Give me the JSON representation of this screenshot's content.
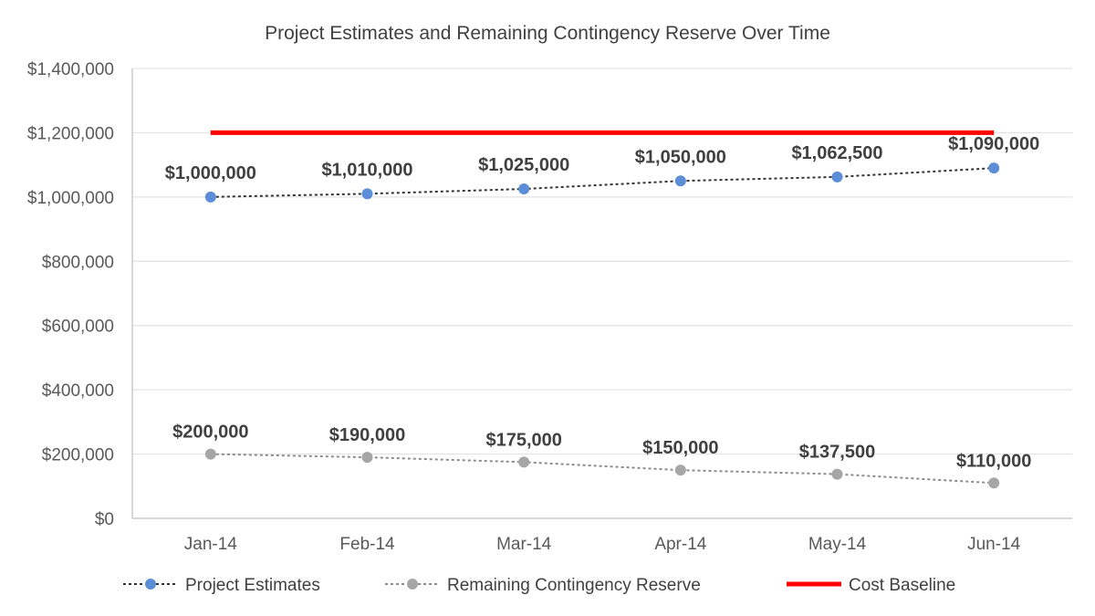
{
  "chart_data": {
    "type": "line",
    "title": "Project Estimates and Remaining Contingency Reserve Over Time",
    "categories": [
      "Jan-14",
      "Feb-14",
      "Mar-14",
      "Apr-14",
      "May-14",
      "Jun-14"
    ],
    "ylim": [
      0,
      1400000
    ],
    "yticks": [
      0,
      200000,
      400000,
      600000,
      800000,
      1000000,
      1200000,
      1400000
    ],
    "ytick_labels": [
      "$0",
      "$200,000",
      "$400,000",
      "$600,000",
      "$800,000",
      "$1,000,000",
      "$1,200,000",
      "$1,400,000"
    ],
    "grid": true,
    "legend_position": "bottom",
    "series": [
      {
        "name": "Project Estimates",
        "values": [
          1000000,
          1010000,
          1025000,
          1050000,
          1062500,
          1090000
        ],
        "labels": [
          "$1,000,000",
          "$1,010,000",
          "$1,025,000",
          "$1,050,000",
          "$1,062,500",
          "$1,090,000"
        ],
        "color": "#5b8ed6",
        "line_color": "#333333",
        "style": "dotted-with-markers"
      },
      {
        "name": "Remaining Contingency Reserve",
        "values": [
          200000,
          190000,
          175000,
          150000,
          137500,
          110000
        ],
        "labels": [
          "$200,000",
          "$190,000",
          "$175,000",
          "$150,000",
          "$137,500",
          "$110,000"
        ],
        "color": "#a6a6a6",
        "line_color": "#8c8c8c",
        "style": "dotted-with-markers"
      },
      {
        "name": "Cost Baseline",
        "values": [
          1200000,
          1200000,
          1200000,
          1200000,
          1200000,
          1200000
        ],
        "color": "#ff0000",
        "style": "solid"
      }
    ]
  }
}
